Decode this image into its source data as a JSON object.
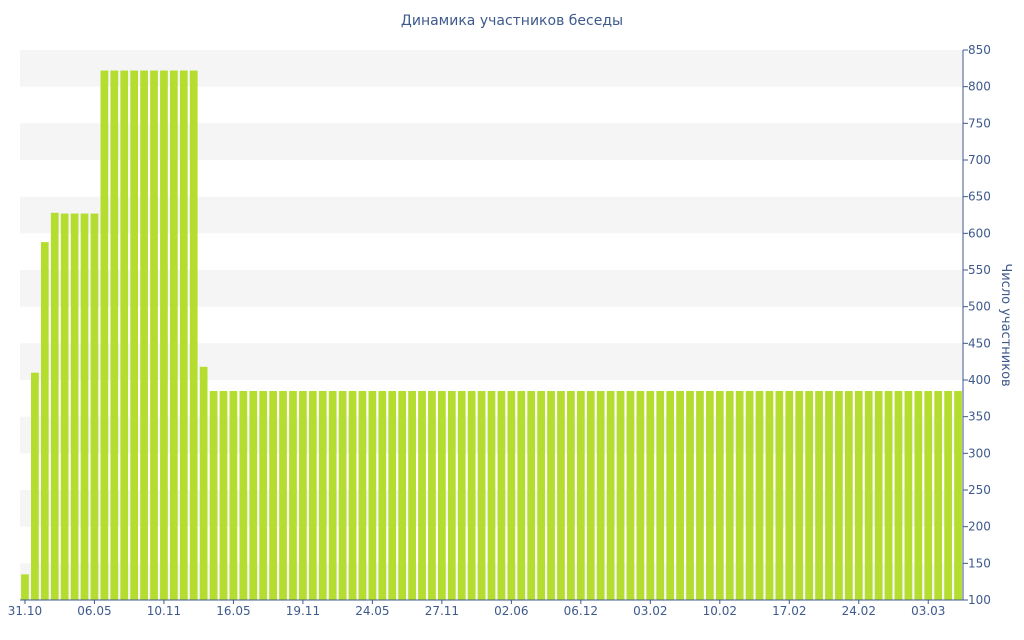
{
  "chart_data": {
    "type": "bar",
    "title": "Динамика участников беседы",
    "xlabel": "",
    "ylabel": "Число участников",
    "ylim": [
      100,
      850
    ],
    "y_axis_side": "right",
    "yticks": [
      100,
      150,
      200,
      250,
      300,
      350,
      400,
      450,
      500,
      550,
      600,
      650,
      700,
      750,
      800,
      850
    ],
    "x_tick_labels": [
      {
        "index": 0,
        "label": "31.10"
      },
      {
        "index": 7,
        "label": "06.05"
      },
      {
        "index": 14,
        "label": "10.11"
      },
      {
        "index": 21,
        "label": "16.05"
      },
      {
        "index": 28,
        "label": "19.11"
      },
      {
        "index": 35,
        "label": "24.05"
      },
      {
        "index": 42,
        "label": "27.11"
      },
      {
        "index": 49,
        "label": "02.06"
      },
      {
        "index": 56,
        "label": "06.12"
      },
      {
        "index": 63,
        "label": "03.02"
      },
      {
        "index": 70,
        "label": "10.02"
      },
      {
        "index": 77,
        "label": "17.02"
      },
      {
        "index": 84,
        "label": "24.02"
      },
      {
        "index": 91,
        "label": "03.03"
      }
    ],
    "values": [
      135,
      410,
      588,
      628,
      627,
      627,
      627,
      627,
      822,
      822,
      822,
      822,
      822,
      822,
      822,
      822,
      822,
      822,
      418,
      385,
      385,
      385,
      385,
      385,
      385,
      385,
      385,
      385,
      385,
      385,
      385,
      385,
      385,
      385,
      385,
      385,
      385,
      385,
      385,
      385,
      385,
      385,
      385,
      385,
      385,
      385,
      385,
      385,
      385,
      385,
      385,
      385,
      385,
      385,
      385,
      385,
      385,
      385,
      385,
      385,
      385,
      385,
      385,
      385,
      385,
      385,
      385,
      385,
      385,
      385,
      385,
      385,
      385,
      385,
      385,
      385,
      385,
      385,
      385,
      385,
      385,
      385,
      385,
      385,
      385,
      385,
      385,
      385,
      385,
      385,
      385,
      385,
      385,
      385,
      385
    ],
    "grid": "alternating horizontal bands",
    "legend": "none",
    "colors": {
      "bar": "#b5dd2f",
      "band": "#f5f5f5",
      "axis": "#3e5a8c",
      "text": "#3e5a8c"
    }
  }
}
